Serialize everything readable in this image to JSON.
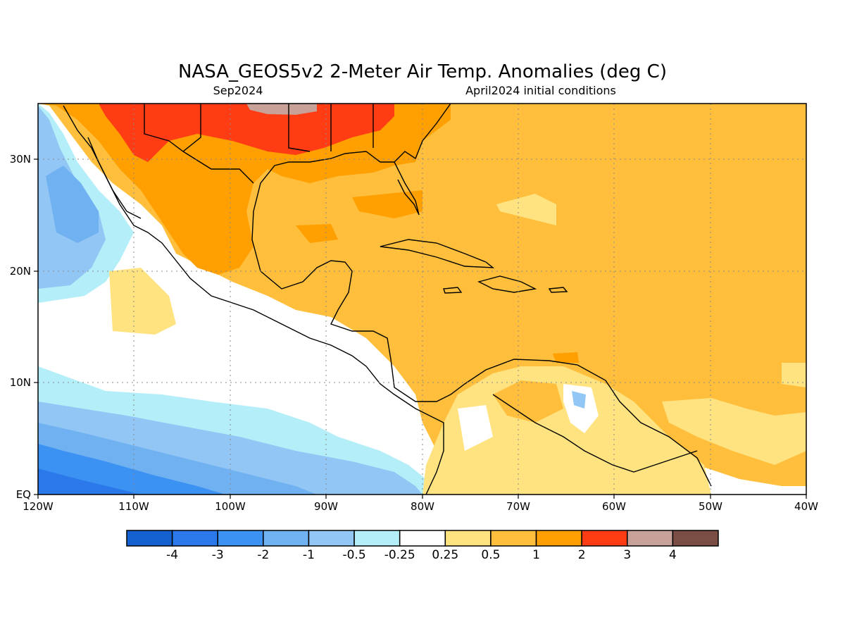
{
  "title": "NASA_GEOS5v2 2-Meter Air Temp. Anomalies (deg C)",
  "subtitle_left": "Sep2024",
  "subtitle_right": "April2024 initial conditions",
  "map": {
    "region": "Central America / Caribbean / Gulf of Mexico",
    "lon_range": [
      -120,
      -40
    ],
    "lat_range": [
      0,
      35
    ],
    "x_ticks": [
      "120W",
      "110W",
      "100W",
      "90W",
      "80W",
      "70W",
      "60W",
      "50W",
      "40W"
    ],
    "y_ticks": [
      "EQ",
      "10N",
      "20N",
      "30N"
    ],
    "grid": "dotted"
  },
  "colorbar": {
    "labels": [
      "-4",
      "-3",
      "-2",
      "-1",
      "-0.5",
      "-0.25",
      "0.25",
      "0.5",
      "1",
      "2",
      "3",
      "4"
    ],
    "colors": [
      "#1561d1",
      "#2a78ea",
      "#3b92f2",
      "#70b1f2",
      "#92c6f5",
      "#b4eef9",
      "#ffffff",
      "#ffe380",
      "#ffbf3c",
      "#ff9f00",
      "#ff3c14",
      "#c8a198",
      "#7a4e45"
    ]
  }
}
